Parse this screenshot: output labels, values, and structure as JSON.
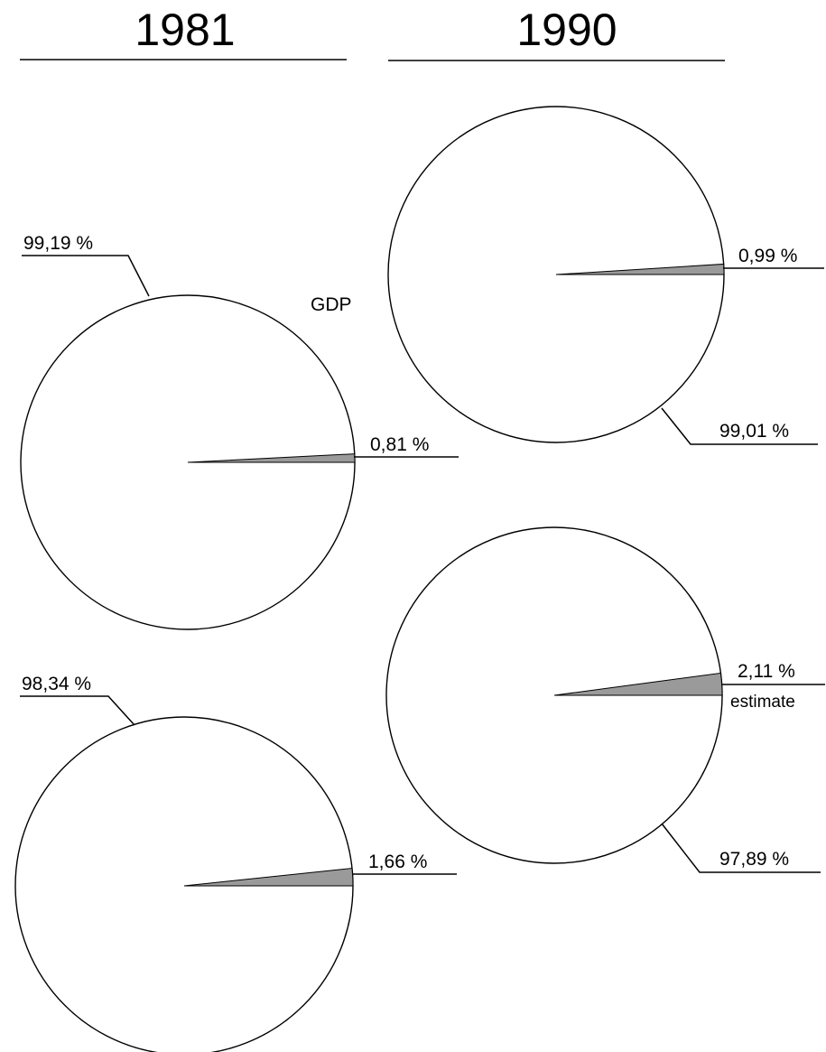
{
  "chart_data": {
    "type": "pie",
    "columns": [
      "1981",
      "1990"
    ],
    "row_label": "GDP",
    "colors": {
      "large": "#ffffff",
      "small": "#9a9a9a",
      "outline": "#000000"
    },
    "charts": [
      {
        "column": "1981",
        "row": 1,
        "slices": [
          {
            "value": 99.19,
            "label": "99,19 %"
          },
          {
            "value": 0.81,
            "label": "0,81 %"
          }
        ],
        "note": ""
      },
      {
        "column": "1990",
        "row": 1,
        "slices": [
          {
            "value": 99.01,
            "label": "99,01 %"
          },
          {
            "value": 0.99,
            "label": "0,99 %"
          }
        ],
        "note": ""
      },
      {
        "column": "1981",
        "row": 2,
        "slices": [
          {
            "value": 98.34,
            "label": "98,34 %"
          },
          {
            "value": 1.66,
            "label": "1,66 %"
          }
        ],
        "note": ""
      },
      {
        "column": "1990",
        "row": 2,
        "slices": [
          {
            "value": 97.89,
            "label": "97,89 %"
          },
          {
            "value": 2.11,
            "label": "2,11 %"
          }
        ],
        "note": "estimate"
      }
    ]
  }
}
